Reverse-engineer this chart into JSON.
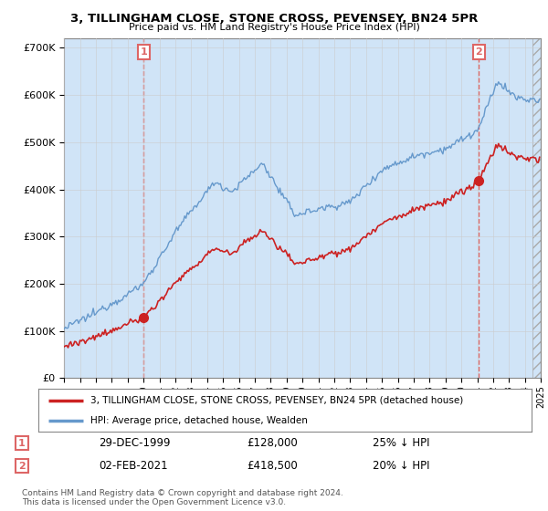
{
  "title1": "3, TILLINGHAM CLOSE, STONE CROSS, PEVENSEY, BN24 5PR",
  "title2": "Price paid vs. HM Land Registry's House Price Index (HPI)",
  "legend_label1": "3, TILLINGHAM CLOSE, STONE CROSS, PEVENSEY, BN24 5PR (detached house)",
  "legend_label2": "HPI: Average price, detached house, Wealden",
  "annotation1_date": "29-DEC-1999",
  "annotation1_price": "£128,000",
  "annotation1_hpi": "25% ↓ HPI",
  "annotation2_date": "02-FEB-2021",
  "annotation2_price": "£418,500",
  "annotation2_hpi": "20% ↓ HPI",
  "footer": "Contains HM Land Registry data © Crown copyright and database right 2024.\nThis data is licensed under the Open Government Licence v3.0.",
  "sale1_year": 2000.0,
  "sale1_value": 128000,
  "sale2_year": 2021.1,
  "sale2_value": 418500,
  "line_color_property": "#cc2222",
  "line_color_hpi": "#6699cc",
  "fill_color_hpi": "#d0e4f7",
  "dot_color_property": "#cc2222",
  "background_color": "#ffffff",
  "grid_color": "#cccccc",
  "dashed_color": "#dd6666",
  "ylim": [
    0,
    720000
  ],
  "xlim_start": 1995,
  "xlim_end": 2025
}
